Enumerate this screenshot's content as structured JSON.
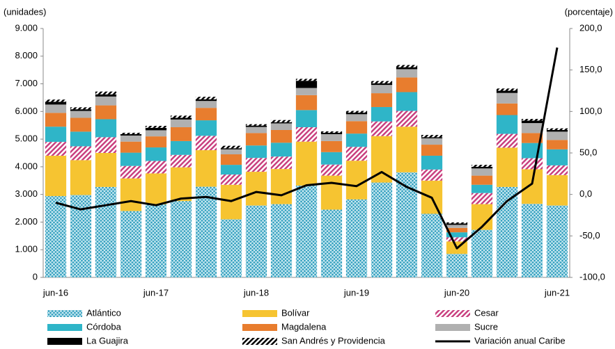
{
  "chart_data": {
    "type": "bar",
    "stacked": true,
    "y_label": "(unidades)",
    "y2_label": "(porcentaje)",
    "categories": [
      "jun-16",
      null,
      null,
      null,
      "jun-17",
      null,
      null,
      null,
      "jun-18",
      null,
      null,
      null,
      "jun-19",
      null,
      null,
      null,
      "jun-20",
      null,
      null,
      null,
      "jun-21"
    ],
    "ylim": [
      0,
      9000
    ],
    "yticks": [
      {
        "value": 0,
        "label": "0"
      },
      {
        "value": 1000,
        "label": "1.000"
      },
      {
        "value": 2000,
        "label": "2.000"
      },
      {
        "value": 3000,
        "label": "3.000"
      },
      {
        "value": 4000,
        "label": "4.000"
      },
      {
        "value": 5000,
        "label": "5.000"
      },
      {
        "value": 6000,
        "label": "6.000"
      },
      {
        "value": 7000,
        "label": "7.000"
      },
      {
        "value": 8000,
        "label": "8.000"
      },
      {
        "value": 9000,
        "label": "9.000"
      }
    ],
    "y2lim": [
      -100,
      200
    ],
    "y2ticks": [
      {
        "value": -100,
        "label": "-100,0"
      },
      {
        "value": -50,
        "label": "-50,0"
      },
      {
        "value": 0,
        "label": "0,0"
      },
      {
        "value": 50,
        "label": "50,0"
      },
      {
        "value": 100,
        "label": "100,0"
      },
      {
        "value": 150,
        "label": "150,0"
      },
      {
        "value": 200,
        "label": "200,0"
      }
    ],
    "series": [
      {
        "name": "Atlántico",
        "color": "#2e9dbd",
        "pattern": "crosshatch",
        "values": [
          2940,
          2980,
          3270,
          2400,
          2640,
          2760,
          3280,
          2100,
          2600,
          2650,
          3320,
          2450,
          2820,
          3430,
          3800,
          2300,
          850,
          1720,
          3270,
          2660,
          2600
        ]
      },
      {
        "name": "Bolívar",
        "color": "#f6c431",
        "values": [
          1460,
          1260,
          1230,
          1180,
          1120,
          1220,
          1320,
          1250,
          1220,
          1270,
          1590,
          1230,
          1400,
          1680,
          1650,
          1200,
          450,
          930,
          1420,
          1250,
          1100
        ]
      },
      {
        "name": "Cesar",
        "color": "#c9407f",
        "pattern": "stripes",
        "values": [
          500,
          500,
          570,
          450,
          450,
          450,
          520,
          370,
          500,
          450,
          520,
          400,
          500,
          530,
          570,
          400,
          150,
          400,
          500,
          400,
          350
        ]
      },
      {
        "name": "Córdoba",
        "color": "#2fb5c8",
        "values": [
          550,
          530,
          650,
          480,
          490,
          500,
          560,
          350,
          450,
          500,
          620,
          450,
          480,
          520,
          680,
          500,
          180,
          300,
          680,
          550,
          580
        ]
      },
      {
        "name": "Magdalena",
        "color": "#e87d2e",
        "values": [
          500,
          500,
          500,
          400,
          400,
          500,
          450,
          380,
          450,
          460,
          540,
          400,
          450,
          500,
          530,
          400,
          160,
          330,
          420,
          360,
          340
        ]
      },
      {
        "name": "Sucre",
        "color": "#b0b0b0",
        "values": [
          300,
          250,
          320,
          220,
          220,
          280,
          250,
          180,
          220,
          240,
          260,
          250,
          250,
          300,
          300,
          230,
          110,
          260,
          380,
          360,
          300
        ]
      },
      {
        "name": "La Guajira",
        "color": "#000000",
        "values": [
          100,
          60,
          80,
          50,
          90,
          60,
          60,
          40,
          50,
          40,
          260,
          50,
          60,
          60,
          70,
          40,
          50,
          60,
          80,
          90,
          60
        ]
      },
      {
        "name": "San Andrés y Providencia",
        "color": "#000000",
        "pattern": "stripes",
        "values": [
          80,
          70,
          100,
          50,
          70,
          80,
          90,
          90,
          50,
          80,
          70,
          50,
          60,
          80,
          80,
          80,
          40,
          70,
          80,
          60,
          60
        ]
      },
      {
        "name": "Variación anual Caribe",
        "color": "#000000",
        "type": "line",
        "axis": "y2",
        "values": [
          -10,
          -18,
          -13,
          -8,
          -13,
          -5,
          -3,
          -8,
          3,
          -1,
          11,
          14,
          10,
          27,
          9,
          -4,
          -65,
          -39,
          -8,
          13,
          177
        ]
      }
    ]
  }
}
